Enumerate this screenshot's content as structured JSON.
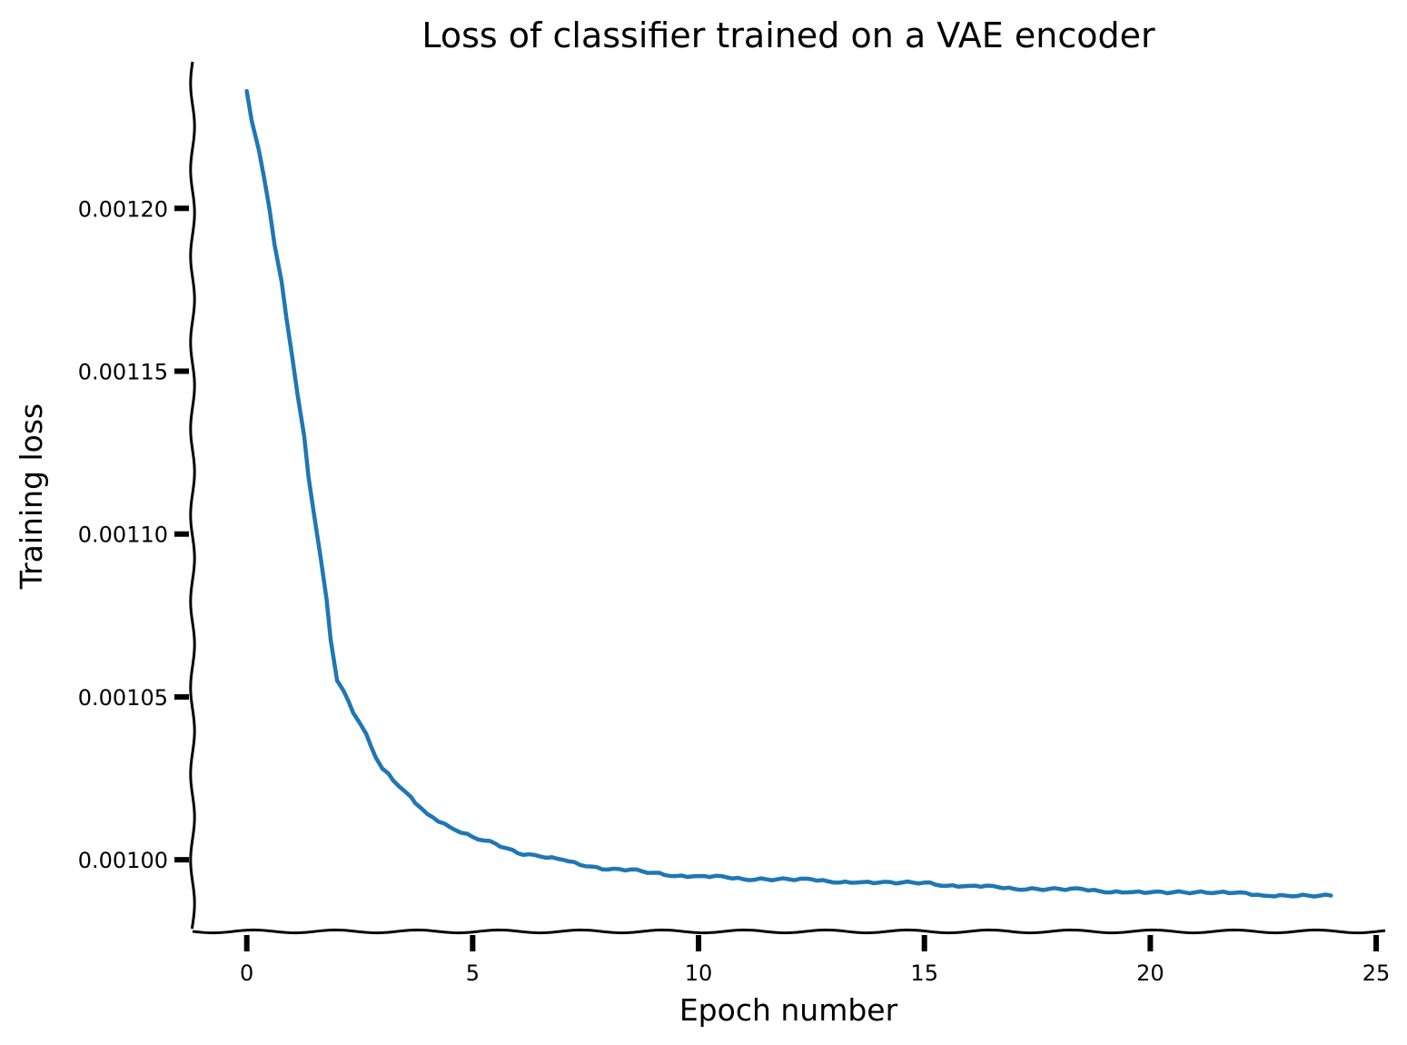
{
  "chart_data": {
    "type": "line",
    "title": "Loss of classifier trained on a VAE encoder",
    "xlabel": "Epoch number",
    "ylabel": "Training loss",
    "xlim": [
      -1.2,
      25.2
    ],
    "ylim": [
      0.000978,
      0.001245
    ],
    "xticks": [
      0,
      5,
      10,
      15,
      20,
      25
    ],
    "xtick_labels": [
      "0",
      "5",
      "10",
      "15",
      "20",
      "25"
    ],
    "yticks": [
      0.001,
      0.00105,
      0.0011,
      0.00115,
      0.0012
    ],
    "ytick_labels": [
      "0.00100",
      "0.00105",
      "0.00110",
      "0.00115",
      "0.00120"
    ],
    "grid": false,
    "style": "xkcd",
    "series": [
      {
        "color": "#1f77b4",
        "x": [
          0,
          0.5,
          1,
          1.5,
          2,
          2.5,
          3,
          3.5,
          4,
          4.5,
          5,
          5.5,
          6,
          6.5,
          7,
          7.5,
          8,
          8.5,
          9,
          9.5,
          10,
          10.5,
          11,
          11.5,
          12,
          12.5,
          13,
          13.5,
          14,
          14.5,
          15,
          15.5,
          16,
          16.5,
          17,
          17.5,
          18,
          18.5,
          19,
          19.5,
          20,
          20.5,
          21,
          21.5,
          22,
          22.5,
          23,
          23.5,
          24
        ],
        "y": [
          0.001236,
          0.0012,
          0.001155,
          0.001105,
          0.001055,
          0.001042,
          0.001028,
          0.001021,
          0.001014,
          0.00101,
          0.001007,
          0.001005,
          0.001002,
          0.001001,
          0.001,
          0.000998,
          0.000997,
          0.000997,
          0.000996,
          0.000995,
          0.000995,
          0.000995,
          0.000994,
          0.000994,
          0.000994,
          0.000994,
          0.000993,
          0.000993,
          0.000993,
          0.000993,
          0.000993,
          0.000992,
          0.000992,
          0.000992,
          0.000991,
          0.000991,
          0.000991,
          0.000991,
          0.00099,
          0.00099,
          0.00099,
          0.00099,
          0.00099,
          0.00099,
          0.00099,
          0.000989,
          0.000989,
          0.000989,
          0.000989
        ]
      }
    ]
  }
}
